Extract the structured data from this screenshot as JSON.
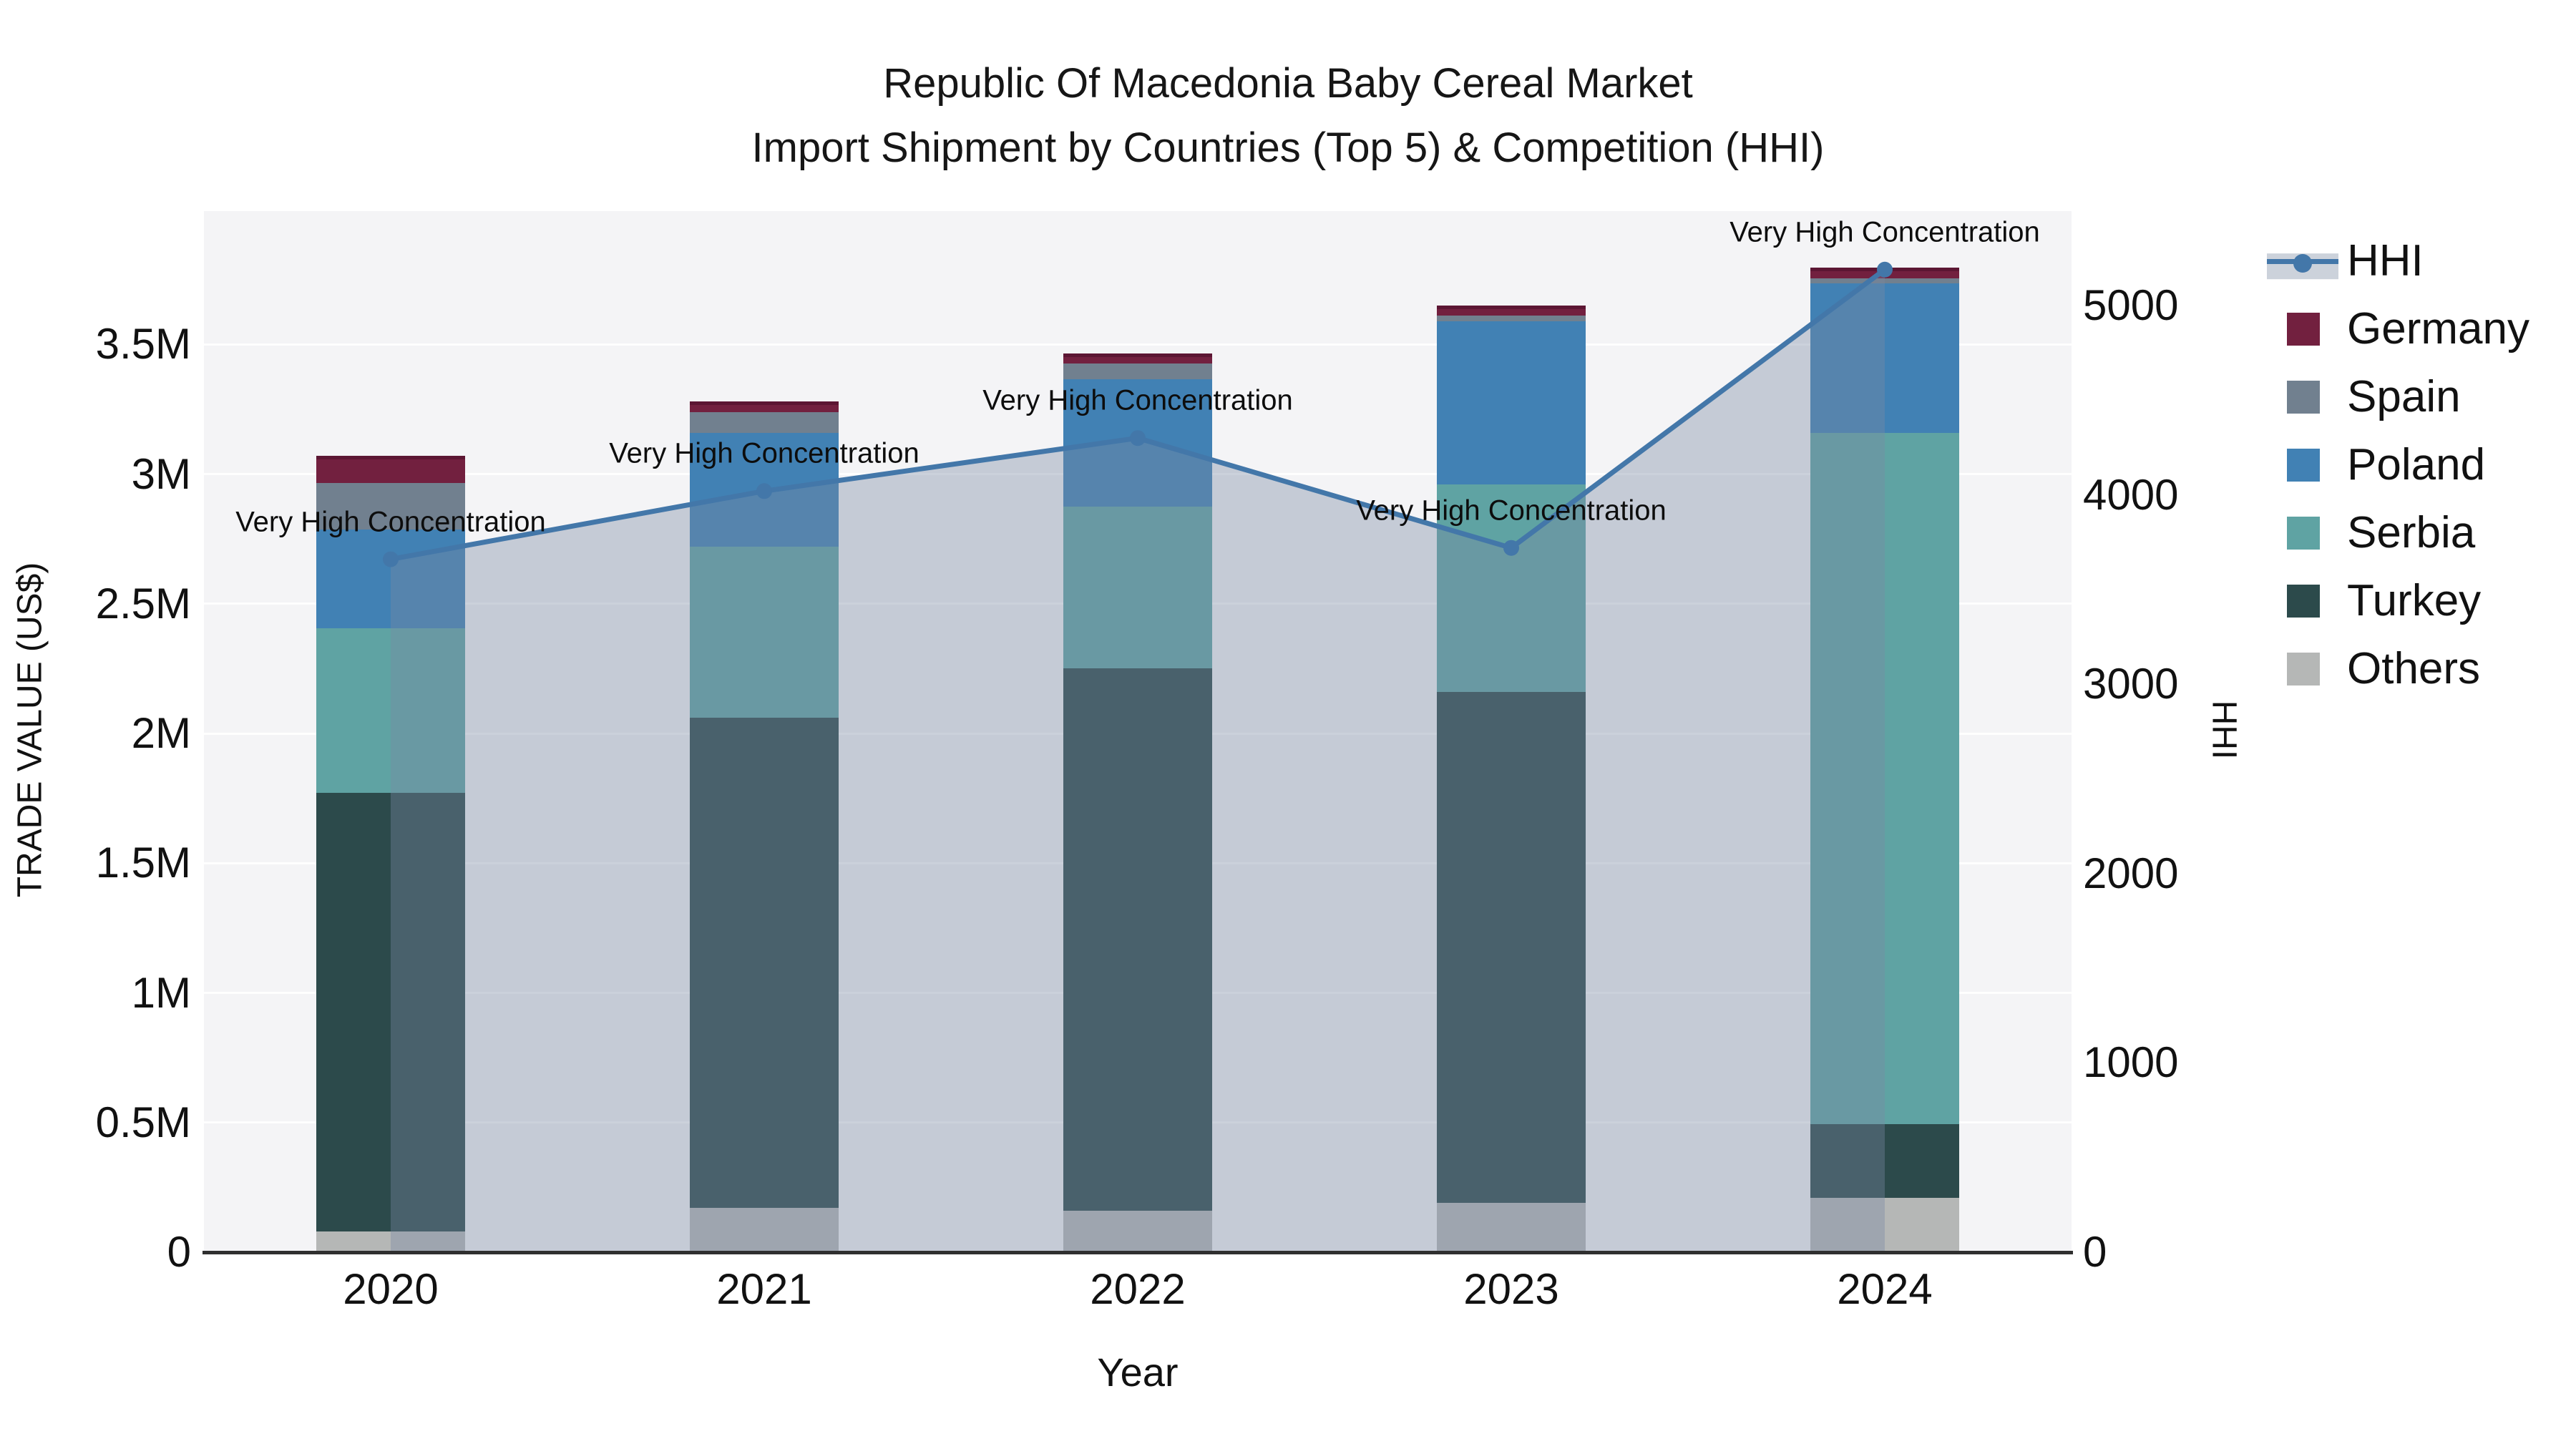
{
  "title": {
    "line1": "Republic Of Macedonia Baby Cereal Market",
    "line2": "Import Shipment by Countries (Top 5) & Competition (HHI)"
  },
  "axes": {
    "x": {
      "label": "Year",
      "categories": [
        "2020",
        "2021",
        "2022",
        "2023",
        "2024"
      ]
    },
    "left": {
      "label": "TRADE VALUE (US$)",
      "ticks": [
        {
          "v": 0,
          "label": "0"
        },
        {
          "v": 0.5,
          "label": "0.5M"
        },
        {
          "v": 1,
          "label": "1M"
        },
        {
          "v": 1.5,
          "label": "1.5M"
        },
        {
          "v": 2,
          "label": "2M"
        },
        {
          "v": 2.5,
          "label": "2.5M"
        },
        {
          "v": 3,
          "label": "3M"
        },
        {
          "v": 3.5,
          "label": "3.5M"
        }
      ]
    },
    "right": {
      "label": "HHI",
      "ticks": [
        {
          "v": 0,
          "label": "0"
        },
        {
          "v": 1000,
          "label": "1000"
        },
        {
          "v": 2000,
          "label": "2000"
        },
        {
          "v": 3000,
          "label": "3000"
        },
        {
          "v": 4000,
          "label": "4000"
        },
        {
          "v": 5000,
          "label": "5000"
        }
      ]
    }
  },
  "legend": {
    "items": [
      {
        "label": "HHI",
        "type": "line",
        "color": "#4377a9"
      },
      {
        "label": "Germany",
        "type": "swatch",
        "color": "#72203f"
      },
      {
        "label": "Spain",
        "type": "swatch",
        "color": "#71808f"
      },
      {
        "label": "Poland",
        "type": "swatch",
        "color": "#4181b4"
      },
      {
        "label": "Serbia",
        "type": "swatch",
        "color": "#5fa3a3"
      },
      {
        "label": "Turkey",
        "type": "swatch",
        "color": "#2c4a4b"
      },
      {
        "label": "Others",
        "type": "swatch",
        "color": "#b5b7b6"
      }
    ]
  },
  "colors": {
    "plot_bg": "#f4f4f6",
    "grid": "rgba(255,255,255,0.9)",
    "axis_line": "#2f2f2f",
    "hhi_line": "#4377a9",
    "hhi_fill": "rgba(120,138,162,0.38)",
    "germany_border": "#5c1633"
  },
  "chart_data": {
    "type": "bar+line",
    "title": "Republic Of Macedonia Baby Cereal Market — Import Shipment by Countries (Top 5) & Competition (HHI)",
    "categories": [
      "2020",
      "2021",
      "2022",
      "2023",
      "2024"
    ],
    "unit_left": "million US$",
    "unit_right": "HHI index",
    "ylim_left_musd": [
      0,
      4.0
    ],
    "ylim_right_hhi": [
      0,
      5500
    ],
    "grid": "horizontal 0.5M steps",
    "legend_position": "right",
    "stack_note": "bars stacked bottom-to-top in this series order",
    "series": [
      {
        "name": "Others",
        "color": "#b5b7b6",
        "values_musd": [
          0.08,
          0.17,
          0.16,
          0.19,
          0.21
        ]
      },
      {
        "name": "Turkey",
        "color": "#2c4a4b",
        "values_musd": [
          1.69,
          1.89,
          2.09,
          1.97,
          0.285
        ]
      },
      {
        "name": "Serbia",
        "color": "#5fa3a3",
        "values_musd": [
          0.635,
          0.66,
          0.625,
          0.8,
          2.665
        ]
      },
      {
        "name": "Poland",
        "color": "#4181b4",
        "values_musd": [
          0.38,
          0.44,
          0.49,
          0.63,
          0.575
        ]
      },
      {
        "name": "Spain",
        "color": "#71808f",
        "values_musd": [
          0.18,
          0.08,
          0.06,
          0.02,
          0.02
        ]
      },
      {
        "name": "Germany",
        "color": "#72203f",
        "values_musd": [
          0.105,
          0.04,
          0.04,
          0.04,
          0.04
        ]
      }
    ],
    "bar_totals_musd": [
      3.07,
      3.28,
      3.465,
      3.65,
      3.795
    ],
    "hhi": {
      "name": "HHI",
      "axis": "right",
      "values": [
        3660,
        4020,
        4300,
        3720,
        5190
      ],
      "fill": "area under line"
    },
    "annotations": [
      {
        "text": "Very High Concentration",
        "year": "2020"
      },
      {
        "text": "Very High Concentration",
        "year": "2021"
      },
      {
        "text": "Very High Concentration",
        "year": "2022"
      },
      {
        "text": "Very High Concentration",
        "year": "2023"
      },
      {
        "text": "Very High Concentration",
        "year": "2024"
      }
    ]
  }
}
